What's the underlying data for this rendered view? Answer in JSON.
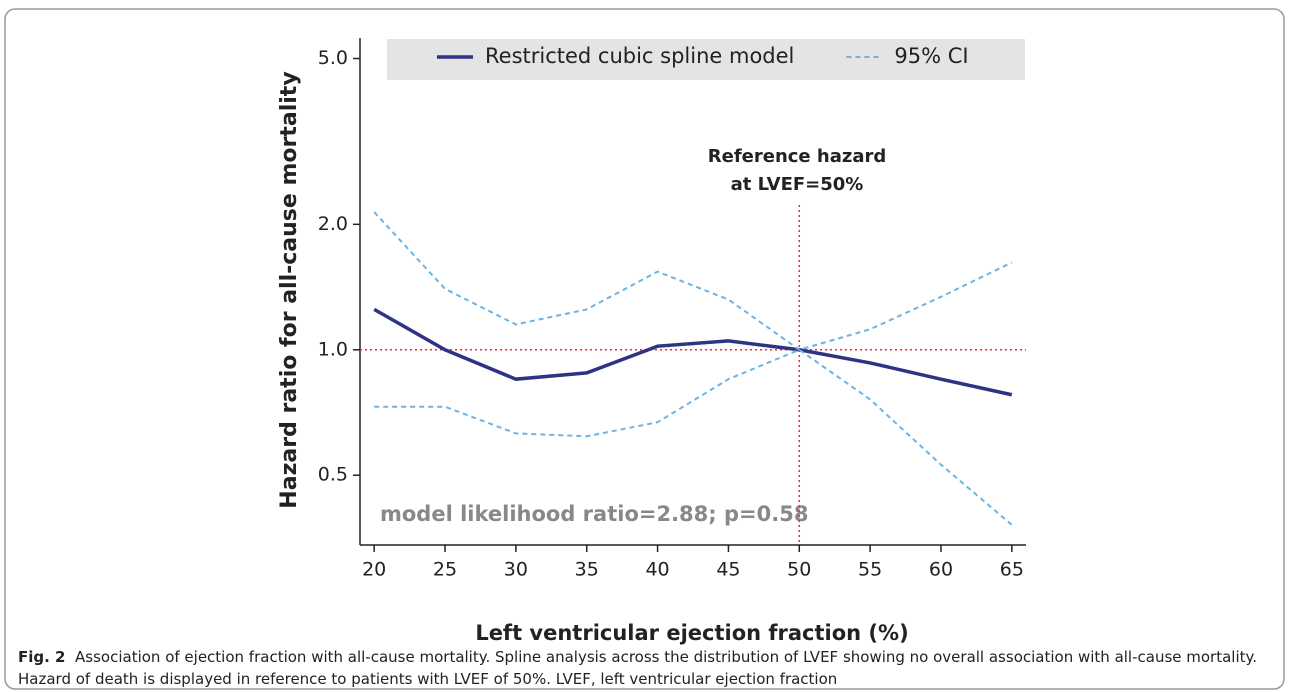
{
  "chart_data": {
    "type": "line",
    "ylabel": "Hazard ratio for all-cause mortality",
    "xlabel": "Left ventricular ejection fraction (%)",
    "x": [
      20,
      25,
      30,
      35,
      40,
      45,
      50,
      55,
      60,
      65
    ],
    "series": [
      {
        "name": "Restricted cubic spline model",
        "color": "#2e3383",
        "style": "solid",
        "values": [
          1.25,
          1.0,
          0.85,
          0.88,
          1.02,
          1.05,
          1.0,
          0.93,
          0.85,
          0.78
        ]
      },
      {
        "name": "95% CI",
        "color": "#6cb4e4",
        "style": "dashed",
        "values": [
          2.14,
          1.4,
          1.15,
          1.25,
          1.54,
          1.32,
          1.0,
          1.12,
          1.34,
          1.62
        ]
      },
      {
        "values": [
          0.73,
          0.73,
          0.63,
          0.62,
          0.67,
          0.85,
          1.0,
          0.76,
          0.53,
          0.38
        ],
        "color": "#6cb4e4",
        "style": "dashed"
      }
    ],
    "xlim": [
      19,
      66
    ],
    "xticks": [
      20,
      25,
      30,
      35,
      40,
      45,
      50,
      55,
      60,
      65
    ],
    "ylim": [
      0.34,
      5.6
    ],
    "yscale": "log",
    "yticks": [
      {
        "value": 5,
        "label": "5.0"
      },
      {
        "value": 2,
        "label": "2.0"
      },
      {
        "value": 1,
        "label": "1.0"
      },
      0.5
    ],
    "reference_lines": {
      "y": 1,
      "x": 50,
      "color": "#e0313a"
    },
    "annotations": [
      "Reference hazard",
      "at LVEF=50%"
    ],
    "stat_text": "model likelihood ratio=2.88; p=0.58"
  },
  "caption": {
    "label": "Fig. 2",
    "text": "Association of ejection fraction with all-cause mortality. Spline analysis across the distribution of LVEF showing no overall association with all-cause mortality. Hazard of death is displayed in reference to patients with LVEF of 50%. LVEF, left ventricular ejection fraction"
  }
}
